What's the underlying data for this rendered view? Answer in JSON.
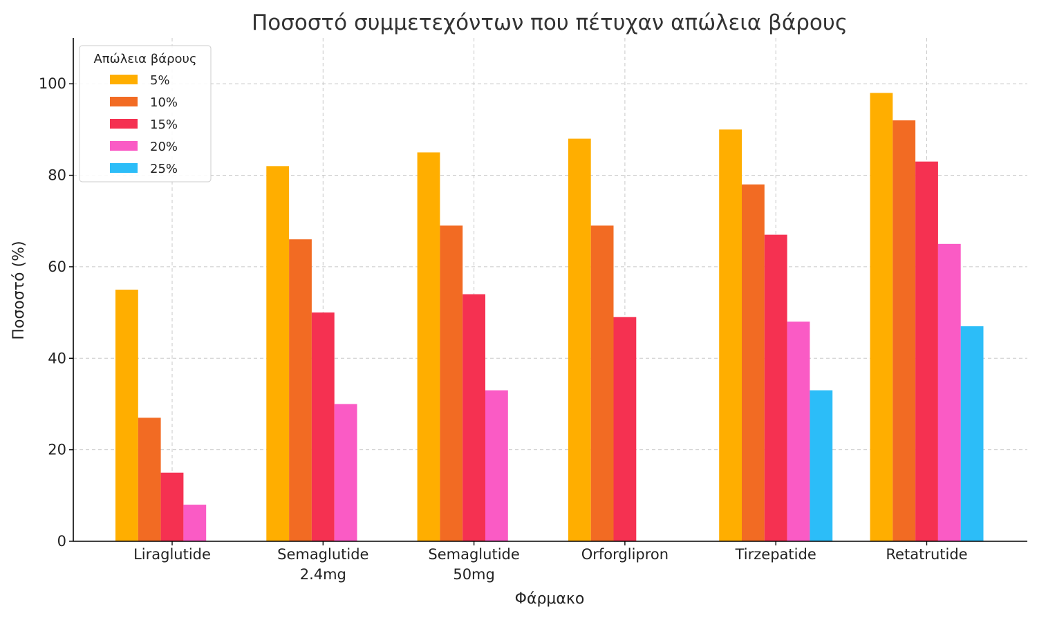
{
  "chart_data": {
    "type": "bar",
    "title": "Ποσοστό συμμετεχόντων που πέτυχαν απώλεια βάρους",
    "xlabel": "Φάρμακο",
    "ylabel": "Ποσοστό (%)",
    "ylim": [
      0,
      110
    ],
    "yticks": [
      0,
      20,
      40,
      60,
      80,
      100
    ],
    "grid": true,
    "legend_title": "Απώλεια βάρους",
    "legend_position": "top-left",
    "categories": [
      "Liraglutide",
      "Semaglutide\n2.4mg",
      "Semaglutide\n50mg",
      "Orforglipron",
      "Tirzepatide",
      "Retatrutide"
    ],
    "series": [
      {
        "name": "5%",
        "color": "#FFAE00",
        "values": [
          55,
          82,
          85,
          88,
          90,
          98
        ]
      },
      {
        "name": "10%",
        "color": "#F26B23",
        "values": [
          27,
          66,
          69,
          69,
          78,
          92
        ]
      },
      {
        "name": "15%",
        "color": "#F53151",
        "values": [
          15,
          50,
          54,
          49,
          67,
          83
        ]
      },
      {
        "name": "20%",
        "color": "#FA5BC5",
        "values": [
          8,
          30,
          33,
          null,
          48,
          65
        ]
      },
      {
        "name": "25%",
        "color": "#2CBDF8",
        "values": [
          null,
          null,
          null,
          null,
          33,
          47
        ]
      }
    ]
  }
}
